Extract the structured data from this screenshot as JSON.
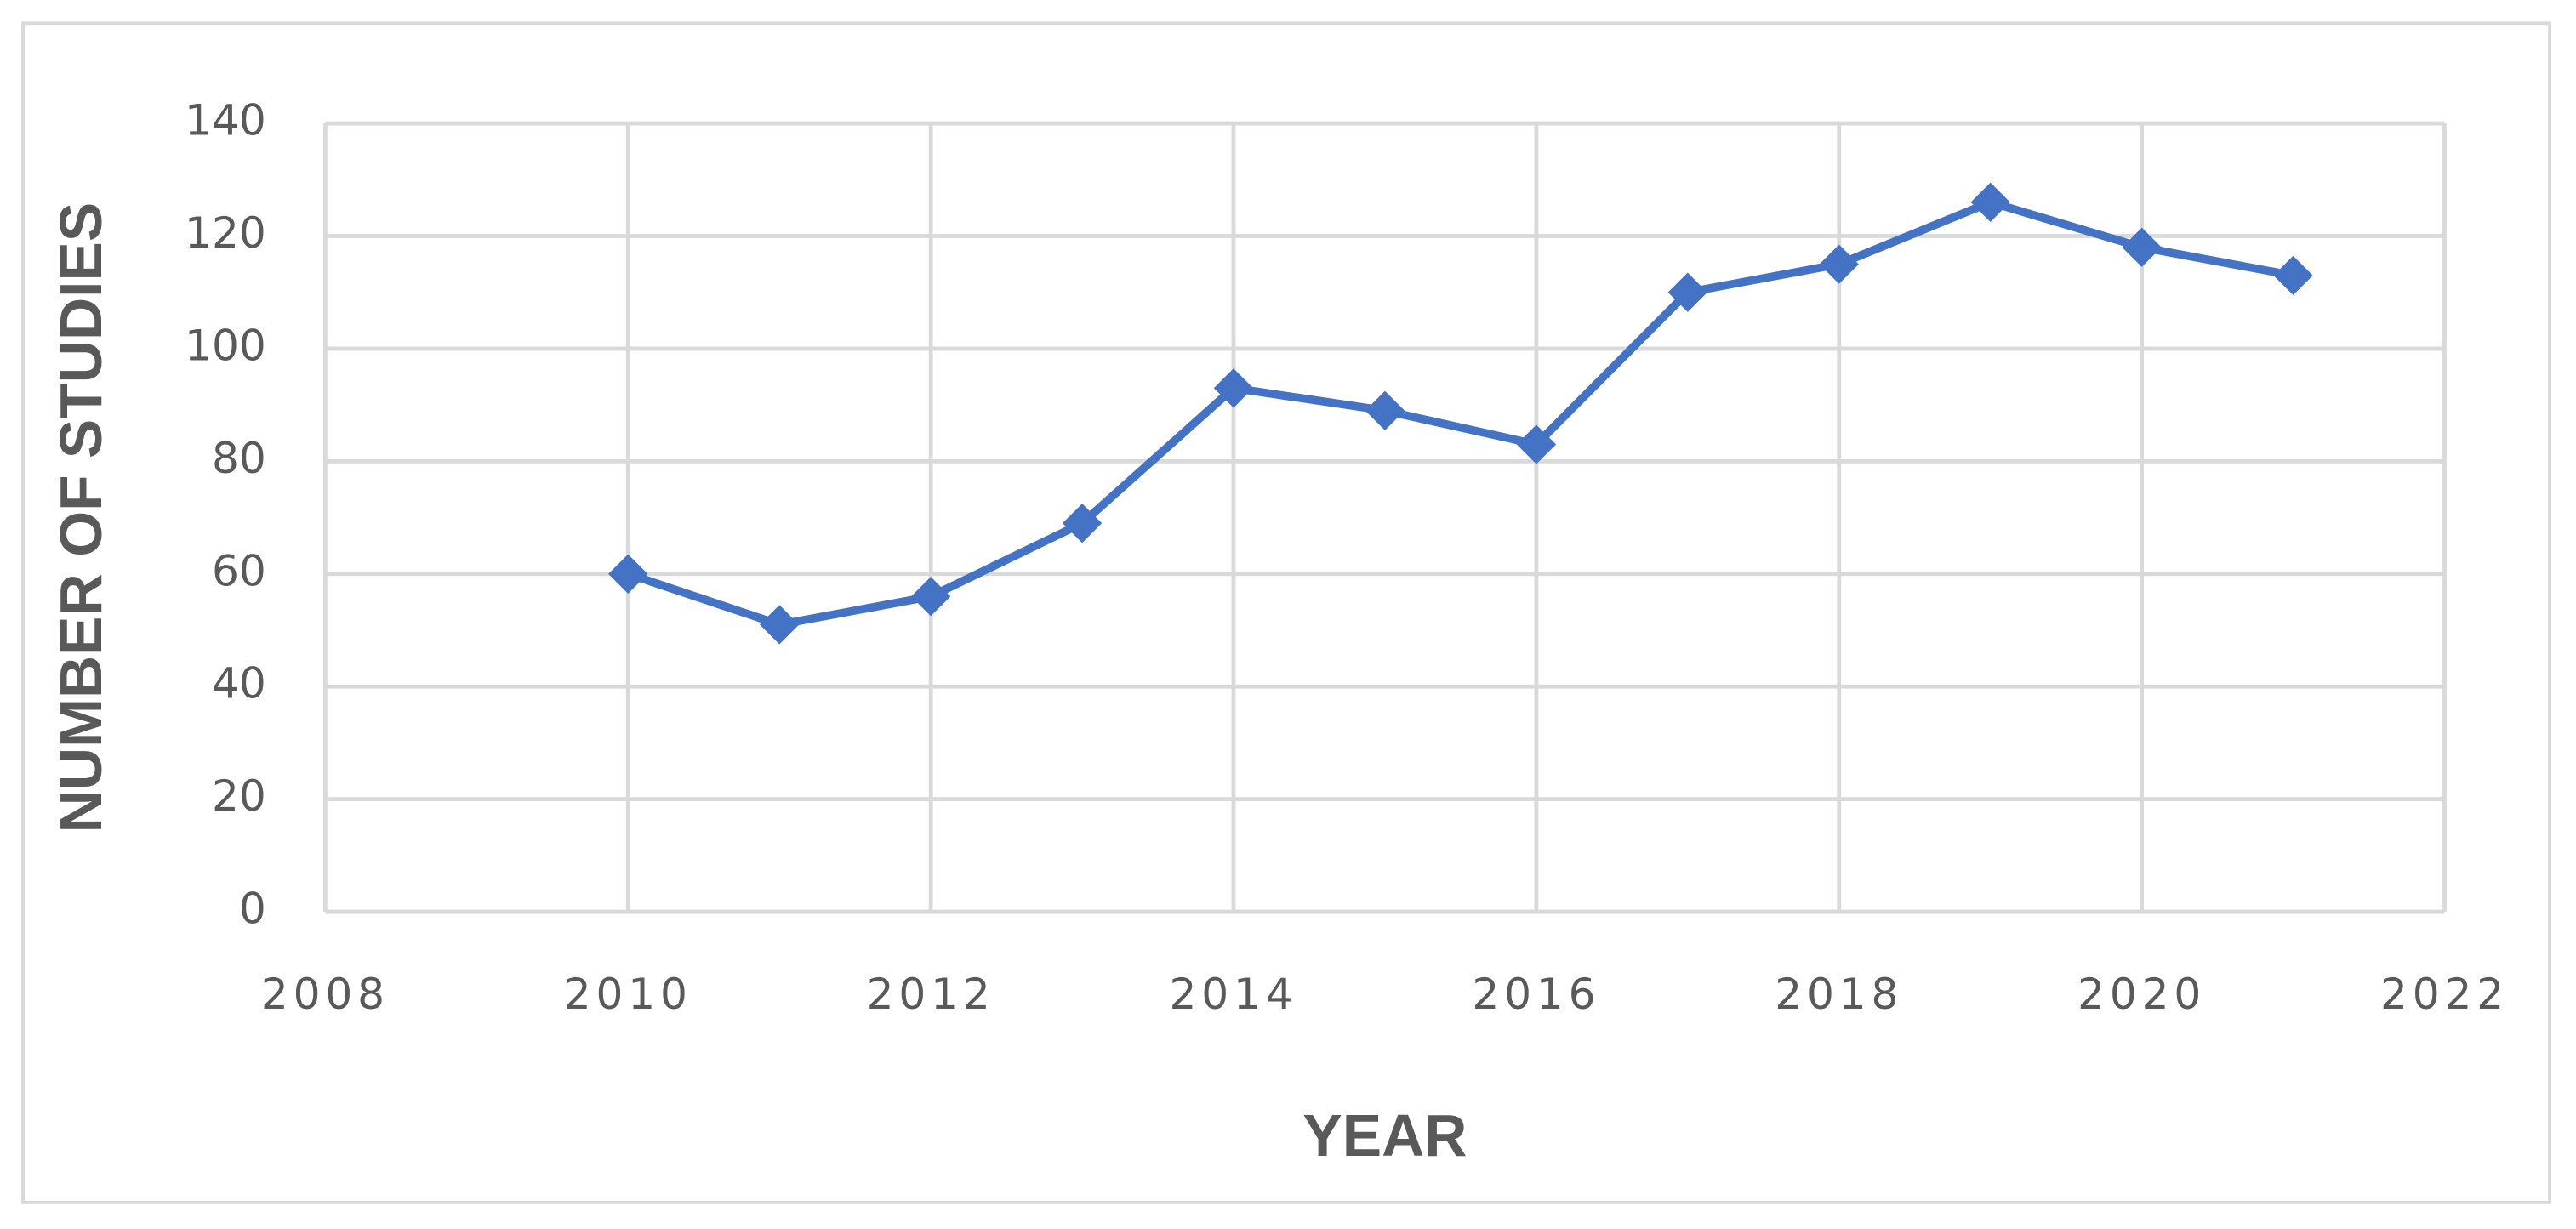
{
  "chart_data": {
    "type": "line",
    "x": [
      2010,
      2011,
      2012,
      2013,
      2014,
      2015,
      2016,
      2017,
      2018,
      2019,
      2020,
      2021
    ],
    "series": [
      {
        "color": "#4472c4",
        "values": [
          60,
          51,
          56,
          69,
          93,
          89,
          83,
          110,
          115,
          126,
          118,
          113
        ]
      }
    ],
    "xlim": [
      2008,
      2022
    ],
    "xticks": [
      2008,
      2010,
      2012,
      2014,
      2016,
      2018,
      2020,
      2022
    ],
    "ylim": [
      0,
      140
    ],
    "yticks": [
      0,
      20,
      40,
      60,
      80,
      100,
      120,
      140
    ],
    "x_label": "YEAR",
    "y_label": "NUMBER OF STUDIES",
    "grid": true,
    "marker": "diamond"
  }
}
